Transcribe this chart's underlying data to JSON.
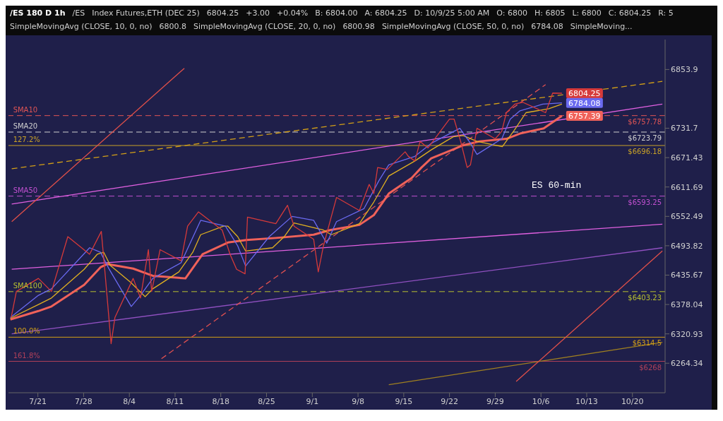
{
  "chart_data": {
    "type": "line",
    "title": "ES 60-min",
    "subtitle": "/ES 180 D 1h",
    "annotations": [
      "/ES",
      "Index Futures,ETH (DEC 25)",
      "6804.25",
      "+3.00",
      "+0.04%",
      "B: 6804.00",
      "A: 6804.25",
      "D: 10/9/25 5:00 AM",
      "O: 6800",
      "H: 6805",
      "L: 6800",
      "C: 6804.25",
      "R: 5",
      "SimpleMovingAvg (CLOSE, 10, 0, no)",
      "6800.8",
      "SimpleMovingAvg (CLOSE, 20, 0, no)",
      "6800.98",
      "SimpleMovingAvg (CLOSE, 50, 0, no)",
      "6784.08",
      "SimpleMoving...",
      {
        "text": "SMA10",
        "x": "--07-17T00:00",
        "y": 6757.78
      },
      {
        "text": "SMA20",
        "x": "--07-17T00:00",
        "y": 6723.79
      },
      {
        "text": "127.2%",
        "x": "--07-17T00:00",
        "y": 6696.18
      },
      {
        "text": "SMA50",
        "x": "--07-17T00:00",
        "y": 6593.25
      },
      {
        "text": "SMA100",
        "x": "--07-17T00:00",
        "y": 6403.23
      },
      {
        "text": "100.0%",
        "x": "--07-17T00:00",
        "y": 6314.5
      },
      {
        "text": "161.8%",
        "x": "--07-17T00:00",
        "y": 6268
      },
      {
        "text": "6804.25",
        "x": "--10-09T05:00",
        "y": 6804.25
      },
      {
        "text": "6784.08",
        "x": "--10-09T05:00",
        "y": 6784.08
      },
      {
        "text": "6757.39",
        "x": "--10-09T05:00",
        "y": 6757.39
      }
    ],
    "xlim": [
      "--07-16T12:00",
      "--10-25T00:00"
    ],
    "xticks": [
      {
        "value": "--07-21",
        "label": "7/21"
      },
      {
        "value": "--07-28",
        "label": "7/28"
      },
      {
        "value": "--08-04",
        "label": "8/4"
      },
      {
        "value": "--08-11",
        "label": "8/11"
      },
      {
        "value": "--08-18",
        "label": "8/18"
      },
      {
        "value": "--08-25",
        "label": "8/25"
      },
      {
        "value": "--09-01",
        "label": "9/1"
      },
      {
        "value": "--09-08",
        "label": "9/8"
      },
      {
        "value": "--09-15",
        "label": "9/15"
      },
      {
        "value": "--09-22",
        "label": "9/22"
      },
      {
        "value": "--09-29",
        "label": "9/29"
      },
      {
        "value": "--10-06",
        "label": "10/6"
      },
      {
        "value": "--10-13",
        "label": "10/13"
      },
      {
        "value": "--10-20",
        "label": "10/20"
      }
    ],
    "ylim": [
      6208,
      6917
    ],
    "log": true,
    "yticks": [
      6264.34,
      6320.93,
      6378.04,
      6435.67,
      6493.82,
      6552.49,
      6611.69,
      6671.43,
      6731.7,
      6853.9
    ],
    "marker": "none",
    "ref_lines": [
      {
        "axis": "y",
        "value": 6757.78,
        "label": "$6757.78",
        "color": "#e05555",
        "line_style": "dashed"
      },
      {
        "axis": "y",
        "value": 6723.79,
        "label": "$6723.79",
        "color": "#d0d0d0",
        "line_style": "dashed"
      },
      {
        "axis": "y",
        "value": 6696.18,
        "label": "$6696.18",
        "color": "#c9a227",
        "line_style": "solid"
      },
      {
        "axis": "y",
        "value": 6593.25,
        "label": "$6593.25",
        "color": "#c050d0",
        "line_style": "dashed"
      },
      {
        "axis": "y",
        "value": 6403.23,
        "label": "$6403.23",
        "color": "#b8c030",
        "line_style": "dashed"
      },
      {
        "axis": "y",
        "value": 6314.5,
        "label": "$6314.5",
        "color": "#d4a017",
        "line_style": "solid"
      },
      {
        "axis": "y",
        "value": 6268,
        "label": "$6268",
        "color": "#b0405a",
        "line_style": "solid"
      }
    ],
    "series": [
      {
        "color": "#e060e0",
        "x": [
          "--07-17T00:00",
          "--10-24T14:00"
        ],
        "values": [
          6577.3,
          6781.5
        ]
      },
      {
        "color": "#e060e0",
        "x": [
          "--07-17T00:00",
          "--10-24T14:00"
        ],
        "values": [
          6447.2,
          6536.7
        ]
      },
      {
        "color": "#9050c0",
        "x": [
          "--07-17T00:00",
          "--10-24T14:00"
        ],
        "values": [
          6320.9,
          6489.8
        ]
      },
      {
        "color": "#d4a017",
        "line_style": "dashed",
        "x": [
          "--07-17T00:00",
          "--10-24T14:00"
        ],
        "values": [
          6648.7,
          6829.0
        ]
      },
      {
        "color": "#a08020",
        "x": [
          "--09-12T17:00",
          "--10-24T14:00"
        ],
        "values": [
          6223.2,
          6304.5
        ]
      },
      {
        "color": "#e05050",
        "line_style": "dashed",
        "x": [
          "--08-08T22:00",
          "--10-06T17:00"
        ],
        "values": [
          6273.1,
          6822.2
        ]
      },
      {
        "color": "#e0504a",
        "x": [
          "--07-17T00:00",
          "--08-12T10:00"
        ],
        "values": [
          6541.9,
          6856.4
        ]
      },
      {
        "color": "#e0504a",
        "x": [
          "--10-02T05:00",
          "--10-24T14:00"
        ],
        "values": [
          6229.4,
          6483.4
        ]
      },
      {
        "color": "#f0625a",
        "x": [
          "--07-16T19:00",
          "--07-21T02:00",
          "--07-23T02:00",
          "--07-28T02:00",
          "--07-30T14:00",
          "--07-31T14:00",
          "--08-04T14:00",
          "--08-07T14:00",
          "--08-12T14:00",
          "--08-15T05:00",
          "--08-19T02:00",
          "--08-21T22:00",
          "--08-26T10:00",
          "--09-01T05:00",
          "--09-03T17:00",
          "--09-08T05:00",
          "--09-10T10:00",
          "--09-12T17:00",
          "--09-16T05:00",
          "--09-17T17:00",
          "--09-19T05:00",
          "--09-22T10:00",
          "--09-24T02:00",
          "--09-26T14:00",
          "--09-30T17:00",
          "--10-02T19:00",
          "--10-06T10:00",
          "--10-09T05:00"
        ],
        "values": [
          6348.8,
          6365.3,
          6374.2,
          6416.4,
          6451.1,
          6457.5,
          6448.5,
          6434.3,
          6429.2,
          6476.9,
          6500.2,
          6505.4,
          6509.3,
          6515.8,
          6525.0,
          6535.4,
          6555.0,
          6598.4,
          6630.0,
          6651.3,
          6669.9,
          6687.3,
          6696.6,
          6704.7,
          6709.9,
          6720.8,
          6731.5,
          6757.39
        ]
      },
      {
        "color": "#e0b020",
        "x": [
          "--07-16T19:00",
          "--07-21T02:00",
          "--07-23T02:00",
          "--07-28T02:00",
          "--07-30T02:00",
          "--07-31T02:00",
          "--08-01T02:00",
          "--08-04T05:00",
          "--08-06T10:00",
          "--08-07T14:00",
          "--08-11T14:00",
          "--08-13T17:00",
          "--08-14T22:00",
          "--08-18T10:00",
          "--08-19T02:00",
          "--08-20T14:00",
          "--08-21T19:00",
          "--08-25T22:00",
          "--08-27T17:00",
          "--08-29T05:00",
          "--09-02T17:00",
          "--09-03T22:00",
          "--09-08T05:00",
          "--09-10T10:00",
          "--09-12T17:00",
          "--09-16T17:00",
          "--09-19T05:00",
          "--09-22T14:00",
          "--09-24T02:00",
          "--09-26T05:00",
          "--09-30T02:00",
          "--10-01T22:00",
          "--10-03T17:00",
          "--10-07T05:00",
          "--10-09T05:00"
        ],
        "values": [
          6351.3,
          6378.0,
          6390.8,
          6447.2,
          6476.9,
          6480.8,
          6454.9,
          6421.5,
          6393.3,
          6408.7,
          6442.1,
          6480.8,
          6515.8,
          6532.8,
          6532.8,
          6511.9,
          6483.4,
          6489.8,
          6511.9,
          6539.3,
          6525.0,
          6515.8,
          6538.0,
          6581.3,
          6634.1,
          6664.6,
          6687.3,
          6714.2,
          6716.8,
          6704.7,
          6694.0,
          6727.5,
          6763.9,
          6772.0,
          6781.5
        ]
      },
      {
        "color": "#6a6af0",
        "x": [
          "--07-16T19:00",
          "--07-21T02:00",
          "--07-23T02:00",
          "--07-28T22:00",
          "--07-30T14:00",
          "--07-31T22:00",
          "--08-04T07:00",
          "--08-05T17:00",
          "--08-07T14:00",
          "--08-11T22:00",
          "--08-14T22:00",
          "--08-18T17:00",
          "--08-20T14:00",
          "--08-21T19:00",
          "--08-25T10:00",
          "--08-28T22:00",
          "--09-01T05:00",
          "--09-03T05:00",
          "--09-04T17:00",
          "--09-08T22:00",
          "--09-11T05:00",
          "--09-12T17:00",
          "--09-16T17:00",
          "--09-19T05:00",
          "--09-23T14:00",
          "--09-25T05:00",
          "--09-26T05:00",
          "--09-30T00:00",
          "--10-01T07:00",
          "--10-02T19:00",
          "--10-06T07:00",
          "--10-09T05:00"
        ],
        "values": [
          6352.6,
          6396.0,
          6408.7,
          6489.8,
          6480.8,
          6447.2,
          6374.2,
          6396.0,
          6429.2,
          6460.1,
          6544.5,
          6532.8,
          6493.7,
          6453.6,
          6511.9,
          6552.4,
          6544.5,
          6498.9,
          6541.9,
          6568.1,
          6624.7,
          6656.6,
          6674.0,
          6700.7,
          6731.5,
          6700.7,
          6678.0,
          6709.9,
          6750.4,
          6767.9,
          6781.5,
          6784.08
        ]
      },
      {
        "color": "#d63a3a",
        "x": [
          "--07-16T22:00",
          "--07-17T17:00",
          "--07-21T02:00",
          "--07-23T02:00",
          "--07-25T14:00",
          "--07-28T22:00",
          "--07-30T17:00",
          "--07-31T07:00",
          "--08-01T05:00",
          "--08-01T19:00",
          "--08-04T14:00",
          "--08-05T17:00",
          "--08-06T22:00",
          "--08-07T10:00",
          "--08-08T17:00",
          "--08-11T22:00",
          "--08-12T22:00",
          "--08-14T14:00",
          "--08-18T05:00",
          "--08-19T10:00",
          "--08-20T10:00",
          "--08-21T17:00",
          "--08-22T02:00",
          "--08-26T10:00",
          "--08-28T05:00",
          "--08-29T05:00",
          "--09-01T05:00",
          "--09-01T22:00",
          "--09-02T17:00",
          "--09-03T19:00",
          "--09-04T17:00",
          "--09-08T05:00",
          "--09-09T17:00",
          "--09-10T10:00",
          "--09-11T00:00",
          "--09-12T12:00",
          "--09-15T05:00",
          "--09-15T17:00",
          "--09-16T17:00",
          "--09-17T12:00",
          "--09-18T17:00",
          "--09-22T00:00",
          "--09-22T17:00",
          "--09-23T17:00",
          "--09-24T17:00",
          "--09-25T05:00",
          "--09-26T05:00",
          "--09-29T00:00",
          "--09-30T00:00",
          "--09-30T17:00",
          "--10-02T00:00",
          "--10-03T05:00",
          "--10-06T17:00",
          "--10-07T19:00",
          "--10-09T05:00"
        ],
        "values": [
          6352.6,
          6403.5,
          6429.2,
          6403.5,
          6511.9,
          6476.9,
          6522.4,
          6438.2,
          6302.0,
          6352.6,
          6429.2,
          6390.8,
          6486.0,
          6403.5,
          6486.0,
          6464.0,
          6532.8,
          6561.5,
          6525.0,
          6476.9,
          6447.2,
          6438.2,
          6551.1,
          6538.0,
          6574.7,
          6532.8,
          6506.7,
          6442.1,
          6493.7,
          6545.9,
          6590.5,
          6564.2,
          6616.9,
          6598.4,
          6651.3,
          6647.3,
          6683.3,
          6674.0,
          6664.6,
          6704.7,
          6691.3,
          6750.4,
          6750.4,
          6704.7,
          6651.3,
          6656.6,
          6731.5,
          6709.9,
          6725.4,
          6763.9,
          6781.5,
          6785.5,
          6763.9,
          6804.6,
          6804.25
        ]
      }
    ]
  }
}
